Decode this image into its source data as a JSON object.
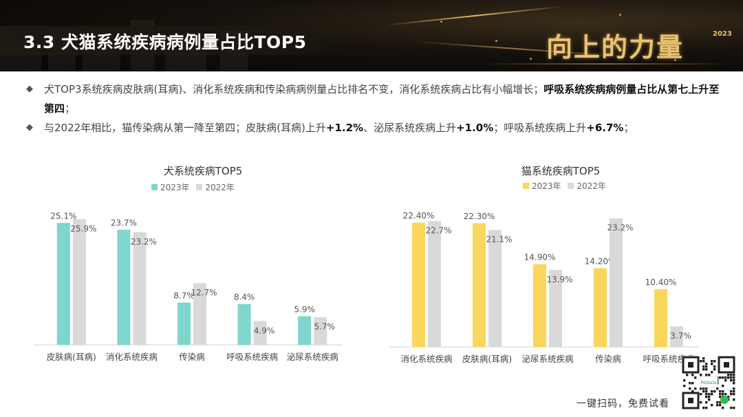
{
  "header": {
    "title": "3.3  犬猫系统疾病病例量占比TOP5",
    "logo_text": "向上的力量",
    "logo_year": "2023"
  },
  "bullets": [
    {
      "marker": "◆",
      "segments": [
        {
          "text": "犬TOP3系统疾病皮肤病(耳病)、消化系统疾病和传染病病例量占比排名不变，消化系统疾病占比有小幅增长；",
          "bold": false
        },
        {
          "text": "呼吸系统疾病病例量占比从第七上升至第四",
          "bold": true
        },
        {
          "text": "；",
          "bold": false
        }
      ]
    },
    {
      "marker": "◆",
      "segments": [
        {
          "text": "与2022年相比，猫传染病从第一降至第四；皮肤病(耳病)上升",
          "bold": false
        },
        {
          "text": "+1.2%",
          "bold": true
        },
        {
          "text": "、泌尿系统疾病上升",
          "bold": false
        },
        {
          "text": "+1.0%",
          "bold": true
        },
        {
          "text": "；呼吸系统疾病上升",
          "bold": false
        },
        {
          "text": "+6.7%",
          "bold": true
        },
        {
          "text": "；",
          "bold": false
        }
      ]
    }
  ],
  "chart_data": [
    {
      "type": "bar",
      "title": "犬系统疾病TOP5",
      "categories": [
        "皮肤病(耳病)",
        "消化系统疾病",
        "传染病",
        "呼吸系统疾病",
        "泌尿系统疾病"
      ],
      "series": [
        {
          "name": "2023年",
          "color": "#7fd6cc",
          "values": [
            25.1,
            23.7,
            8.7,
            8.4,
            5.9
          ],
          "labels": [
            "25.1%",
            "23.7%",
            "8.7%",
            "8.4%",
            "5.9%"
          ]
        },
        {
          "name": "2022年",
          "color": "#d9d9d9",
          "values": [
            25.9,
            23.2,
            12.7,
            4.9,
            5.7
          ],
          "labels": [
            "25.9%",
            "23.2%",
            "12.7%",
            "4.9%",
            "5.7%"
          ]
        }
      ],
      "ylim": [
        0,
        28
      ],
      "legend_position": "top-center",
      "grid": false
    },
    {
      "type": "bar",
      "title": "猫系统疾病TOP5",
      "categories": [
        "消化系统疾病",
        "皮肤病(耳病)",
        "泌尿系统疾病",
        "传染病",
        "呼吸系统疾病"
      ],
      "series": [
        {
          "name": "2023年",
          "color": "#fad65c",
          "values": [
            22.4,
            22.3,
            14.9,
            14.2,
            10.4
          ],
          "labels": [
            "22.40%",
            "22.30%",
            "14.90%",
            "14.20%",
            "10.40%"
          ]
        },
        {
          "name": "2022年",
          "color": "#d9d9d9",
          "values": [
            22.7,
            21.1,
            13.9,
            23.2,
            3.7
          ],
          "labels": [
            "22.7%",
            "21.1%",
            "13.9%",
            "23.2%",
            "3.7%"
          ]
        }
      ],
      "ylim": [
        0,
        27
      ],
      "legend_position": "top-center",
      "grid": false
    }
  ],
  "footer": {
    "cta": "一键扫码，免费试看",
    "qr_label": "Petdata"
  }
}
